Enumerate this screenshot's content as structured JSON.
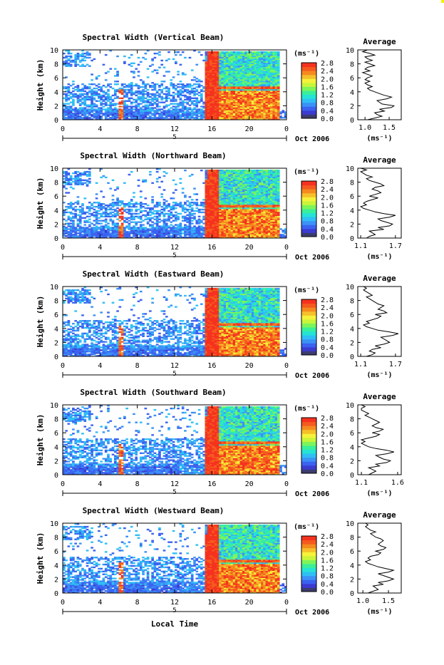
{
  "xlabel": "Local Time",
  "date_label": "Oct 2006",
  "day_label": "5",
  "cbar_unit": "(ms⁻¹)",
  "avg_title": "Average",
  "avg_xlabel": "(ms⁻¹)",
  "ylabel": "Height (km)",
  "colors": {
    "scale": [
      "#3c3c6e",
      "#3b3bd0",
      "#3b62f0",
      "#3b92f5",
      "#2fbff5",
      "#25e3d5",
      "#39ef9a",
      "#7cf55a",
      "#c8f53a",
      "#f5f23a",
      "#f5c02a",
      "#f58a1f",
      "#f55a1f",
      "#f5321f"
    ],
    "background": "#ffffff"
  },
  "chart_data": [
    {
      "type": "heatmap",
      "title": "Spectral Width (Vertical Beam)",
      "xlim": [
        0,
        24
      ],
      "ylim": [
        0,
        10
      ],
      "xticks": [
        "0",
        "4",
        "8",
        "12",
        "16",
        "20",
        "0"
      ],
      "yticks": [
        "0",
        "2",
        "4",
        "6",
        "8",
        "10"
      ],
      "cbar_ticks": [
        "0.0",
        "0.4",
        "0.8",
        "1.2",
        "1.6",
        "2.0",
        "2.4",
        "2.8"
      ],
      "cbar_range": [
        0,
        2.8
      ],
      "avg_xticks": [
        "1.0",
        "1.5"
      ],
      "avg_xlim": [
        0.85,
        1.75
      ],
      "avg_profile": [
        1.05,
        1.2,
        1.35,
        1.25,
        1.2,
        1.4,
        1.3,
        1.55,
        1.6,
        1.35,
        1.3,
        1.25,
        1.45,
        1.55,
        1.4,
        1.3,
        1.2,
        1.1,
        1.05,
        1.15,
        1.05,
        1.0,
        1.1,
        1.0,
        1.05,
        1.15,
        1.05,
        0.95,
        1.1,
        1.0,
        1.05,
        1.2,
        1.1,
        1.0,
        1.15,
        1.05,
        1.0,
        1.2,
        1.1,
        0.95,
        1.05
      ]
    },
    {
      "type": "heatmap",
      "title": "Spectral Width (Northward Beam)",
      "xlim": [
        0,
        24
      ],
      "ylim": [
        0,
        10
      ],
      "xticks": [
        "0",
        "4",
        "8",
        "12",
        "16",
        "20",
        "0"
      ],
      "yticks": [
        "0",
        "2",
        "4",
        "6",
        "8",
        "10"
      ],
      "cbar_ticks": [
        "0.0",
        "0.4",
        "0.8",
        "1.2",
        "1.6",
        "2.0",
        "2.4",
        "2.8"
      ],
      "cbar_range": [
        0,
        2.8
      ],
      "avg_xticks": [
        "1.1",
        "1.7"
      ],
      "avg_xlim": [
        1.05,
        1.8
      ],
      "avg_profile": [
        1.2,
        1.25,
        1.35,
        1.3,
        1.25,
        1.5,
        1.4,
        1.6,
        1.65,
        1.55,
        1.45,
        1.4,
        1.6,
        1.7,
        1.5,
        1.35,
        1.25,
        1.15,
        1.1,
        1.2,
        1.15,
        1.2,
        1.3,
        1.4,
        1.25,
        1.35,
        1.45,
        1.4,
        1.3,
        1.35,
        1.5,
        1.45,
        1.35,
        1.25,
        1.2,
        1.3,
        1.2,
        1.15,
        1.1,
        1.2,
        1.1
      ]
    },
    {
      "type": "heatmap",
      "title": "Spectral Width (Eastward Beam)",
      "xlim": [
        0,
        24
      ],
      "ylim": [
        0,
        10
      ],
      "xticks": [
        "0",
        "4",
        "8",
        "12",
        "16",
        "20",
        "0"
      ],
      "yticks": [
        "0",
        "2",
        "4",
        "6",
        "8",
        "10"
      ],
      "cbar_ticks": [
        "0.0",
        "0.4",
        "0.8",
        "1.2",
        "1.6",
        "2.0",
        "2.4",
        "2.8"
      ],
      "cbar_range": [
        0,
        2.8
      ],
      "avg_xticks": [
        "1.1",
        "1.7"
      ],
      "avg_xlim": [
        1.05,
        1.8
      ],
      "avg_profile": [
        1.2,
        1.3,
        1.35,
        1.25,
        1.3,
        1.45,
        1.35,
        1.5,
        1.6,
        1.55,
        1.5,
        1.45,
        1.65,
        1.75,
        1.6,
        1.4,
        1.3,
        1.2,
        1.15,
        1.25,
        1.2,
        1.3,
        1.4,
        1.45,
        1.35,
        1.55,
        1.5,
        1.4,
        1.45,
        1.5,
        1.4,
        1.35,
        1.3,
        1.25,
        1.2,
        1.3,
        1.25,
        1.2,
        1.15,
        1.2,
        1.15
      ]
    },
    {
      "type": "heatmap",
      "title": "Spectral Width (Southward Beam)",
      "xlim": [
        0,
        24
      ],
      "ylim": [
        0,
        10
      ],
      "xticks": [
        "0",
        "4",
        "8",
        "12",
        "16",
        "20",
        "0"
      ],
      "yticks": [
        "0",
        "2",
        "4",
        "6",
        "8",
        "10"
      ],
      "cbar_ticks": [
        "0.0",
        "0.4",
        "0.8",
        "1.2",
        "1.6",
        "2.0",
        "2.4",
        "2.8"
      ],
      "cbar_range": [
        0,
        2.8
      ],
      "avg_xticks": [
        "1.1",
        "1.6"
      ],
      "avg_xlim": [
        1.05,
        1.65
      ],
      "avg_profile": [
        1.2,
        1.25,
        1.3,
        1.25,
        1.2,
        1.35,
        1.3,
        1.45,
        1.5,
        1.4,
        1.35,
        1.3,
        1.45,
        1.55,
        1.45,
        1.3,
        1.2,
        1.15,
        1.1,
        1.15,
        1.1,
        1.2,
        1.3,
        1.35,
        1.25,
        1.35,
        1.4,
        1.3,
        1.25,
        1.3,
        1.35,
        1.3,
        1.25,
        1.2,
        1.15,
        1.2,
        1.15,
        1.1,
        1.1,
        1.15,
        1.1
      ]
    },
    {
      "type": "heatmap",
      "title": "Spectral Width (Westward Beam)",
      "xlim": [
        0,
        24
      ],
      "ylim": [
        0,
        10
      ],
      "xticks": [
        "0",
        "4",
        "8",
        "12",
        "16",
        "20",
        "0"
      ],
      "yticks": [
        "0",
        "2",
        "4",
        "6",
        "8",
        "10"
      ],
      "cbar_ticks": [
        "0.0",
        "0.4",
        "0.8",
        "1.2",
        "1.6",
        "2.0",
        "2.4",
        "2.8"
      ],
      "cbar_range": [
        0,
        2.8
      ],
      "avg_xticks": [
        "1.0",
        "1.5"
      ],
      "avg_xlim": [
        0.9,
        1.75
      ],
      "avg_profile": [
        1.1,
        1.2,
        1.3,
        1.25,
        1.2,
        1.4,
        1.3,
        1.5,
        1.6,
        1.5,
        1.4,
        1.3,
        1.5,
        1.6,
        1.45,
        1.3,
        1.2,
        1.1,
        1.05,
        1.15,
        1.1,
        1.15,
        1.3,
        1.35,
        1.25,
        1.4,
        1.45,
        1.35,
        1.3,
        1.35,
        1.4,
        1.35,
        1.25,
        1.2,
        1.15,
        1.25,
        1.15,
        1.1,
        1.05,
        1.1,
        1.05
      ]
    }
  ]
}
